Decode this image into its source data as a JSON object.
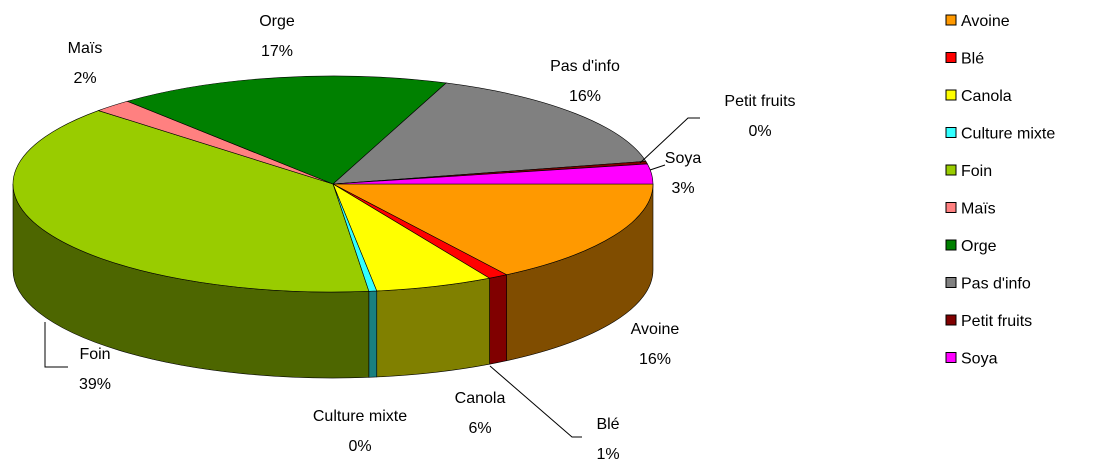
{
  "chart_data": {
    "type": "pie3d",
    "categories": [
      "Avoine",
      "Blé",
      "Canola",
      "Culture mixte",
      "Foin",
      "Maïs",
      "Orge",
      "Pas d'info",
      "Petit fruits",
      "Soya"
    ],
    "values": [
      16,
      1,
      6,
      0.4,
      39,
      2,
      17,
      16,
      0.4,
      3
    ],
    "value_labels": [
      "16%",
      "1%",
      "6%",
      "0%",
      "39%",
      "2%",
      "17%",
      "16%",
      "0%",
      "3%"
    ],
    "colors": [
      "#ff9900",
      "#ff0000",
      "#ffff00",
      "#33ffff",
      "#99cc00",
      "#ff8080",
      "#008000",
      "#808080",
      "#800000",
      "#ff00ff"
    ],
    "legend": "right"
  }
}
